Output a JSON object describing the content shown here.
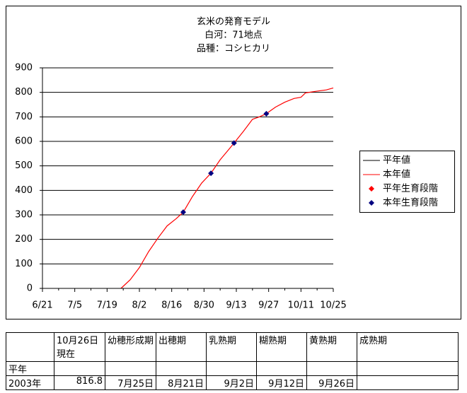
{
  "chart_data": {
    "type": "line",
    "title_lines": [
      "玄米の発育モデル",
      "白河：71地点",
      "品種：コシヒカリ"
    ],
    "xlim": [
      "6/21",
      "10/25"
    ],
    "xticks": [
      "6/21",
      "7/5",
      "7/19",
      "8/2",
      "8/16",
      "8/30",
      "9/13",
      "9/27",
      "10/11",
      "10/25"
    ],
    "ylim": [
      0,
      900
    ],
    "yticks": [
      0,
      100,
      200,
      300,
      400,
      500,
      600,
      700,
      800,
      900
    ],
    "grid": true,
    "legend": "right",
    "series": [
      {
        "name": "平年値",
        "kind": "line",
        "color": "#000000",
        "x": [],
        "values": []
      },
      {
        "name": "本年値",
        "kind": "line",
        "color": "#ff0000",
        "x": [
          "7/25",
          "7/29",
          "8/2",
          "8/6",
          "8/10",
          "8/14",
          "8/18",
          "8/21",
          "8/25",
          "8/29",
          "9/2",
          "9/6",
          "9/10",
          "9/12",
          "9/16",
          "9/20",
          "9/23",
          "9/26",
          "9/30",
          "10/4",
          "10/8",
          "10/11",
          "10/13",
          "10/18",
          "10/22",
          "10/25"
        ],
        "values": [
          0,
          35,
          85,
          150,
          205,
          255,
          285,
          311,
          375,
          430,
          470,
          525,
          570,
          593,
          640,
          690,
          700,
          713,
          740,
          760,
          775,
          780,
          798,
          805,
          810,
          818
        ]
      },
      {
        "name": "平年生育段階",
        "kind": "marker",
        "color": "#ff0000",
        "x": [],
        "values": []
      },
      {
        "name": "本年生育段階",
        "kind": "marker",
        "color": "#000080",
        "x": [
          "8/21",
          "9/2",
          "9/12",
          "9/26"
        ],
        "values": [
          311,
          470,
          593,
          713
        ]
      }
    ]
  },
  "table": {
    "columns": [
      "10月26日\n現在",
      "幼穂形成期",
      "出穂期",
      "乳熟期",
      "糊熟期",
      "黄熟期",
      "成熟期"
    ],
    "rows": [
      {
        "label": "平年",
        "cells": []
      },
      {
        "label": "2003年",
        "cells": [
          "816.8",
          "7月25日",
          "8月21日",
          "9月2日",
          "9月12日",
          "9月26日"
        ]
      }
    ]
  }
}
